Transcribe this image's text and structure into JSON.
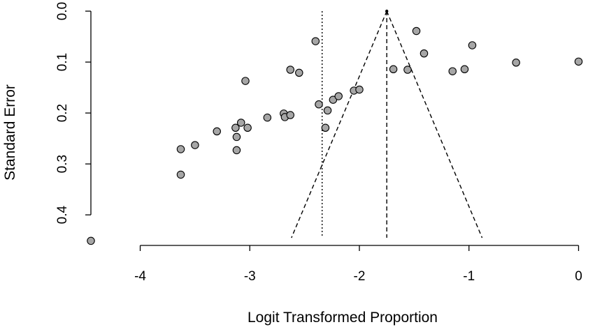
{
  "chart_data": {
    "type": "scatter",
    "title": "",
    "xlabel": "Logit Transformed Proportion",
    "ylabel": "Standard Error",
    "xlim": [
      -4.45,
      0.15
    ],
    "ylim": [
      0.46,
      0.0
    ],
    "y_reversed": true,
    "x_ticks": [
      -4,
      -3,
      -2,
      -1,
      0
    ],
    "x_tick_labels": [
      "-4",
      "-3",
      "-2",
      "-1",
      "0"
    ],
    "y_ticks": [
      0.0,
      0.1,
      0.2,
      0.3,
      0.4
    ],
    "y_tick_labels": [
      "0.0",
      "0.1",
      "0.2",
      "0.3",
      "0.4"
    ],
    "grid": false,
    "box": "left-bottom-axes",
    "point_fill": "#a6a6a6",
    "point_stroke": "#000000",
    "funnel": {
      "pooled_estimate": -1.75,
      "line_style": "dashed",
      "lower_bound_at_max_se": [
        -2.62,
        0.445
      ],
      "upper_bound_at_max_se": [
        -0.88,
        0.445
      ]
    },
    "reference_line": {
      "x": -2.34,
      "line_style": "dotted"
    },
    "points": [
      {
        "x": -4.45,
        "y": 0.451
      },
      {
        "x": -3.63,
        "y": 0.321
      },
      {
        "x": -3.63,
        "y": 0.271
      },
      {
        "x": -3.5,
        "y": 0.263
      },
      {
        "x": -3.3,
        "y": 0.236
      },
      {
        "x": -3.12,
        "y": 0.273
      },
      {
        "x": -3.12,
        "y": 0.247
      },
      {
        "x": -3.13,
        "y": 0.229
      },
      {
        "x": -3.08,
        "y": 0.219
      },
      {
        "x": -3.02,
        "y": 0.229
      },
      {
        "x": -3.04,
        "y": 0.137
      },
      {
        "x": -2.84,
        "y": 0.209
      },
      {
        "x": -2.69,
        "y": 0.201
      },
      {
        "x": -2.68,
        "y": 0.208
      },
      {
        "x": -2.63,
        "y": 0.204
      },
      {
        "x": -2.63,
        "y": 0.115
      },
      {
        "x": -2.55,
        "y": 0.121
      },
      {
        "x": -2.4,
        "y": 0.059
      },
      {
        "x": -2.37,
        "y": 0.183
      },
      {
        "x": -2.31,
        "y": 0.229
      },
      {
        "x": -2.29,
        "y": 0.195
      },
      {
        "x": -2.24,
        "y": 0.174
      },
      {
        "x": -2.19,
        "y": 0.167
      },
      {
        "x": -2.05,
        "y": 0.156
      },
      {
        "x": -2.0,
        "y": 0.154
      },
      {
        "x": -1.69,
        "y": 0.114
      },
      {
        "x": -1.56,
        "y": 0.115
      },
      {
        "x": -1.48,
        "y": 0.039
      },
      {
        "x": -1.41,
        "y": 0.083
      },
      {
        "x": -1.15,
        "y": 0.118
      },
      {
        "x": -1.04,
        "y": 0.114
      },
      {
        "x": -0.97,
        "y": 0.067
      },
      {
        "x": -0.57,
        "y": 0.101
      },
      {
        "x": 0.0,
        "y": 0.099
      }
    ]
  }
}
